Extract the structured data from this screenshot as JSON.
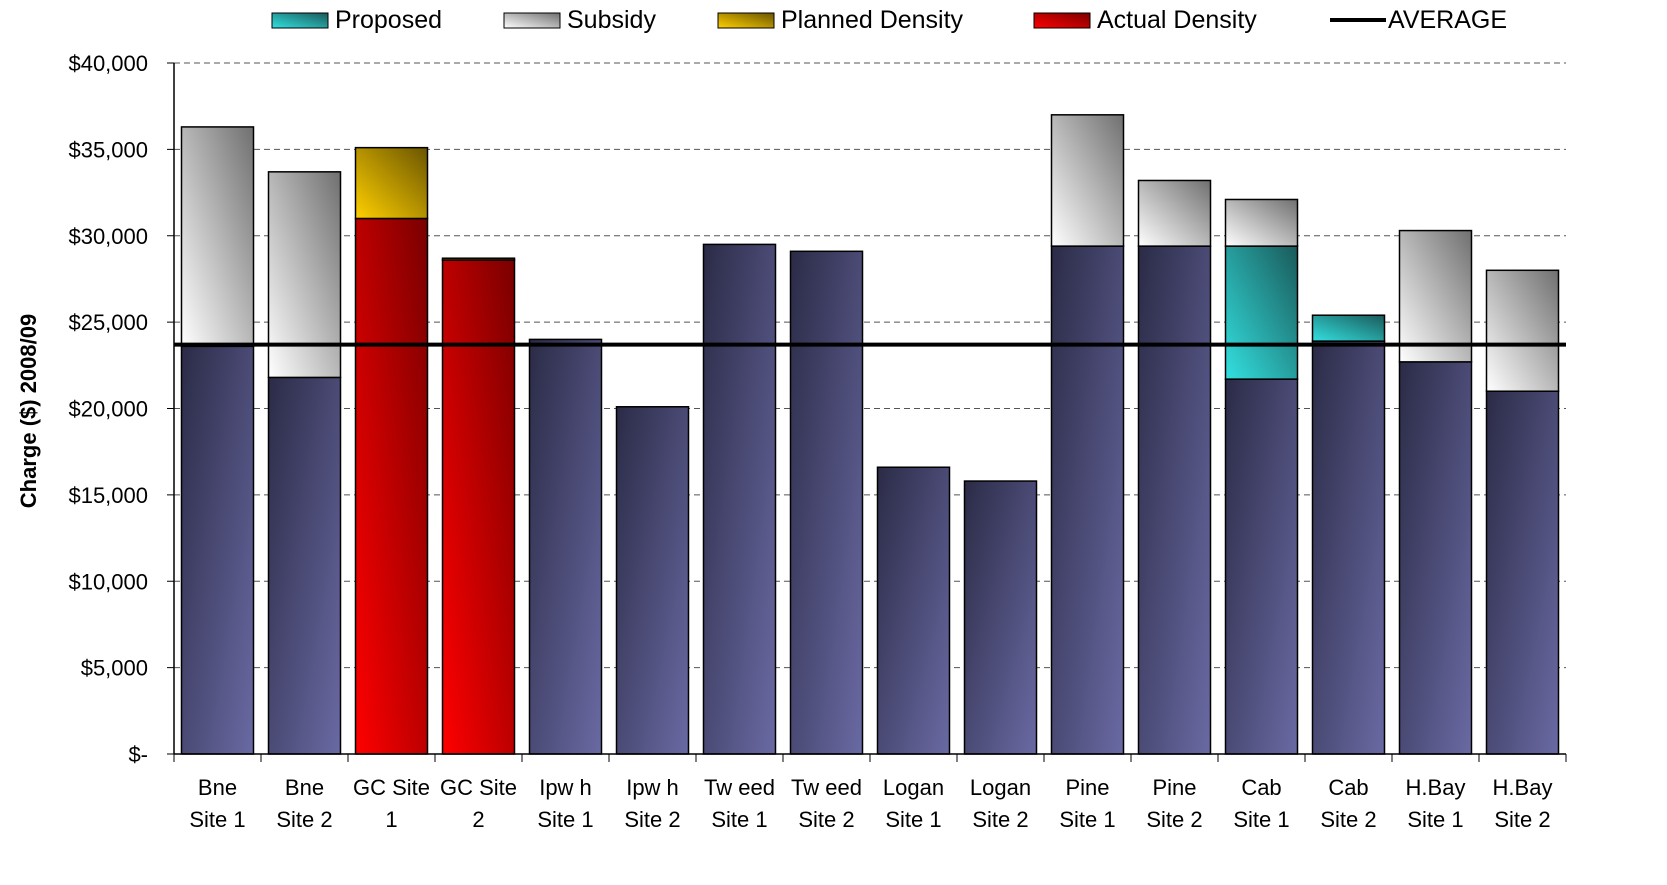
{
  "chart_data": {
    "type": "bar",
    "stacked": true,
    "title": "",
    "xlabel": "",
    "ylabel": "Charge ($) 2008/09",
    "ylim": [
      0,
      40000
    ],
    "yticks": [
      0,
      5000,
      10000,
      15000,
      20000,
      25000,
      30000,
      35000,
      40000
    ],
    "ytick_labels": [
      "$-",
      "$5,000",
      "$10,000",
      "$15,000",
      "$20,000",
      "$25,000",
      "$30,000",
      "$35,000",
      "$40,000"
    ],
    "grid": "horizontal dashed",
    "legend_position": "top",
    "categories": [
      [
        "Bne",
        "Site 1"
      ],
      [
        "Bne",
        "Site 2"
      ],
      [
        "GC Site",
        "1"
      ],
      [
        "GC Site",
        "2"
      ],
      [
        "Ipw h",
        "Site 1"
      ],
      [
        "Ipw h",
        "Site 2"
      ],
      [
        "Tw eed",
        "Site 1"
      ],
      [
        "Tw eed",
        "Site 2"
      ],
      [
        "Logan",
        "Site 1"
      ],
      [
        "Logan",
        "Site 2"
      ],
      [
        "Pine",
        "Site 1"
      ],
      [
        "Pine",
        "Site 2"
      ],
      [
        "Cab",
        "Site 1"
      ],
      [
        "Cab",
        "Site 2"
      ],
      [
        "H.Bay",
        "Site 1"
      ],
      [
        "H.Bay",
        "Site 2"
      ]
    ],
    "series": [
      {
        "key": "base",
        "values": [
          23600,
          21800,
          0,
          0,
          24000,
          20100,
          29500,
          29100,
          16600,
          15800,
          29400,
          29400,
          21700,
          23900,
          22700,
          21000
        ],
        "color": "#3a3a60"
      },
      {
        "key": "actual",
        "name": "Actual Density",
        "values": [
          0,
          0,
          31000,
          28600,
          0,
          0,
          0,
          0,
          0,
          0,
          0,
          0,
          0,
          0,
          0,
          0
        ],
        "color": "#cc0000"
      },
      {
        "key": "planned",
        "name": "Planned Density",
        "values": [
          0,
          0,
          4100,
          100,
          0,
          0,
          0,
          0,
          0,
          0,
          0,
          0,
          0,
          0,
          0,
          0
        ],
        "color": "#e6b800"
      },
      {
        "key": "proposed",
        "name": "Proposed",
        "values": [
          0,
          0,
          0,
          0,
          0,
          0,
          0,
          0,
          0,
          0,
          0,
          0,
          7700,
          1500,
          0,
          0
        ],
        "color": "#20b2aa"
      },
      {
        "key": "subsidy",
        "name": "Subsidy",
        "values": [
          12700,
          11900,
          0,
          0,
          0,
          0,
          0,
          0,
          0,
          0,
          7600,
          3800,
          2700,
          0,
          7600,
          7000
        ],
        "color": "#c8c8c8"
      }
    ],
    "average": {
      "name": "AVERAGE",
      "value": 23700,
      "color": "#000000"
    },
    "legend": [
      {
        "label": "Proposed",
        "key": "proposed"
      },
      {
        "label": "Subsidy",
        "key": "subsidy"
      },
      {
        "label": "Planned Density",
        "key": "planned"
      },
      {
        "label": "Actual Density",
        "key": "actual"
      },
      {
        "label": "AVERAGE",
        "key": "average"
      }
    ]
  }
}
